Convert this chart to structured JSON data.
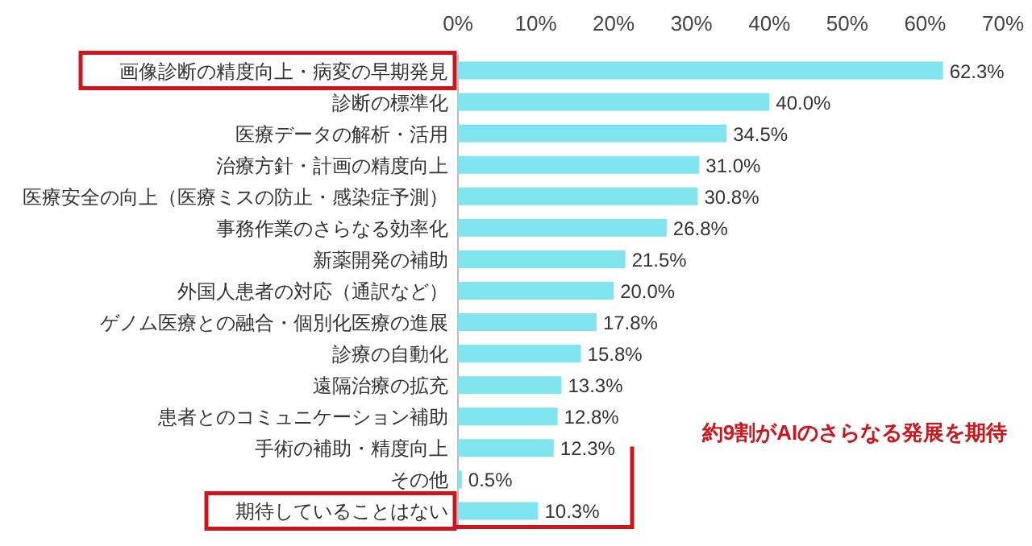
{
  "chart_data": {
    "type": "bar",
    "orientation": "horizontal",
    "categories": [
      "画像診断の精度向上・病変の早期発見",
      "診断の標準化",
      "医療データの解析・活用",
      "治療方針・計画の精度向上",
      "医療安全の向上（医療ミスの防止・感染症予測）",
      "事務作業のさらなる効率化",
      "新薬開発の補助",
      "外国人患者の対応（通訳など）",
      "ゲノム医療との融合・個別化医療の進展",
      "診療の自動化",
      "遠隔治療の拡充",
      "患者とのコミュニケーション補助",
      "手術の補助・精度向上",
      "その他",
      "期待していることはない"
    ],
    "values": [
      62.3,
      40.0,
      34.5,
      31.0,
      30.8,
      26.8,
      21.5,
      20.0,
      17.8,
      15.8,
      13.3,
      12.8,
      12.3,
      0.5,
      10.3
    ],
    "value_labels": [
      "62.3%",
      "40.0%",
      "34.5%",
      "31.0%",
      "30.8%",
      "26.8%",
      "21.5%",
      "20.0%",
      "17.8%",
      "15.8%",
      "13.3%",
      "12.8%",
      "12.3%",
      "0.5%",
      "10.3%"
    ],
    "color": "#80e4ee",
    "xlim": [
      0,
      70
    ],
    "xticks": [
      {
        "value": 0,
        "label": "0%"
      },
      {
        "value": 10,
        "label": "10%"
      },
      {
        "value": 20,
        "label": "20%"
      },
      {
        "value": 30,
        "label": "30%"
      },
      {
        "value": 40,
        "label": "40%"
      },
      {
        "value": 50,
        "label": "50%"
      },
      {
        "value": 60,
        "label": "60%"
      },
      {
        "value": 70,
        "label": "70%"
      }
    ],
    "annotations": [
      "約9割がAIのさらなる発展を期待"
    ],
    "grid": false
  }
}
